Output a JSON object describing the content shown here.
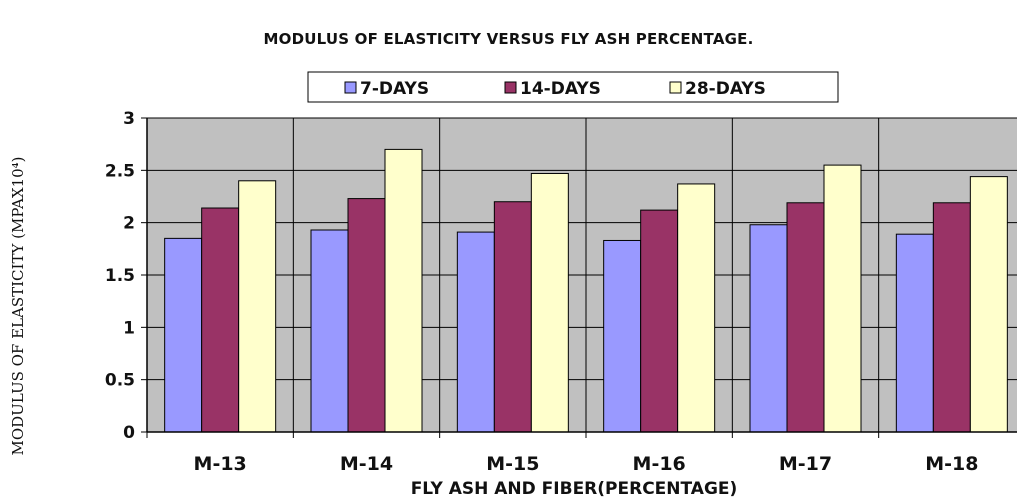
{
  "chart_data": {
    "type": "bar",
    "title": "MODULUS OF ELASTICITY VERSUS FLY ASH PERCENTAGE.",
    "xlabel": "FLY ASH AND FIBER(PERCENTAGE)",
    "ylabel": "MODULUS OF ELASTICITY  (MPAX10⁴)",
    "categories": [
      "M-13",
      "M-14",
      "M-15",
      "M-16",
      "M-17",
      "M-18"
    ],
    "series": [
      {
        "name": "7-DAYS",
        "color": "#9999ff",
        "values": [
          1.85,
          1.93,
          1.91,
          1.83,
          1.98,
          1.89
        ]
      },
      {
        "name": "14-DAYS",
        "color": "#993366",
        "values": [
          2.14,
          2.23,
          2.2,
          2.12,
          2.19,
          2.19
        ]
      },
      {
        "name": "28-DAYS",
        "color": "#ffffcc",
        "values": [
          2.4,
          2.7,
          2.47,
          2.37,
          2.55,
          2.44
        ]
      }
    ],
    "ylim": [
      0,
      3
    ],
    "yticks": [
      "0",
      "0.5",
      "1",
      "1.5",
      "2",
      "2.5",
      "3"
    ],
    "grid": true,
    "plot_background": "#c0c0c0",
    "legend_position": "top"
  }
}
